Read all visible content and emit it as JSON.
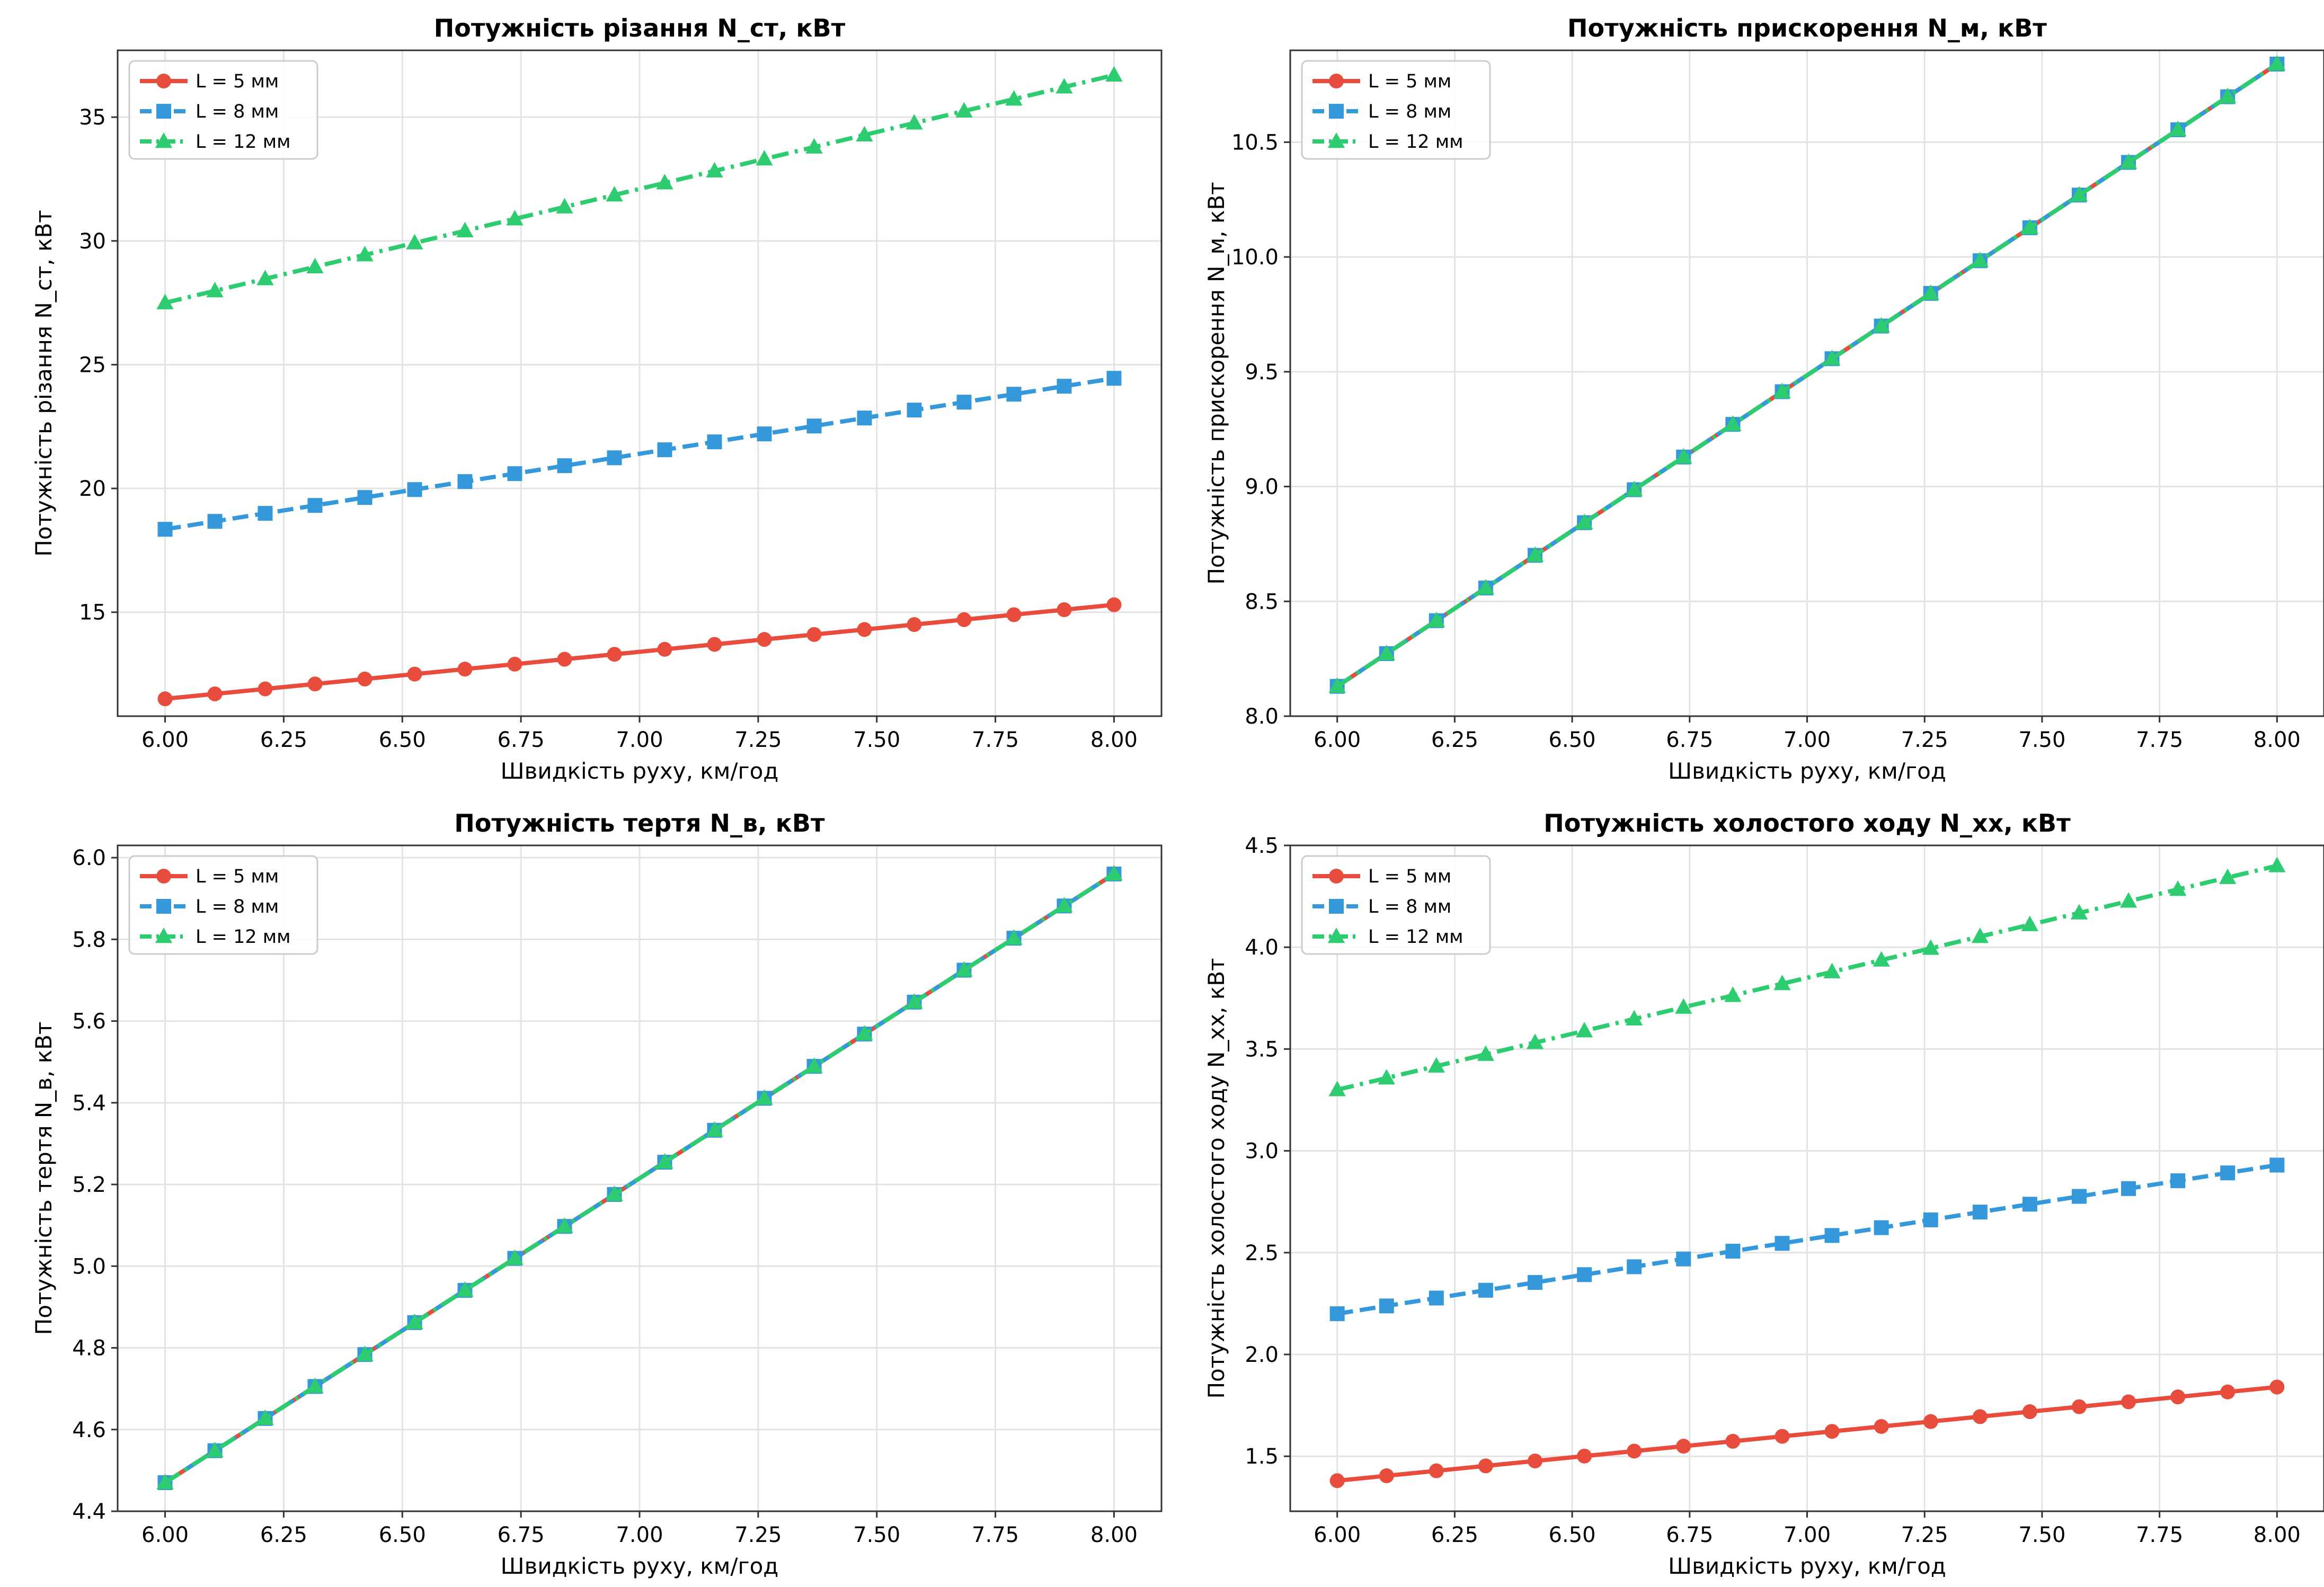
{
  "colors": {
    "s5": "#e74c3c",
    "s8": "#3498db",
    "s12": "#2ecc71",
    "grid": "#e3e3e3",
    "axis": "#333333"
  },
  "legend_labels": [
    "L = 5 мм",
    "L = 8 мм",
    "L = 12 мм"
  ],
  "chart_data": [
    {
      "type": "line",
      "title": "Потужність різання N_ст, кВт",
      "xlabel": "Швидкість руху, км/год",
      "ylabel": "Потужність різання N_ст, кВт",
      "xlim": [
        5.9,
        8.1
      ],
      "ylim": [
        10.8,
        37.7
      ],
      "xticks": [
        "6.00",
        "6.25",
        "6.50",
        "6.75",
        "7.00",
        "7.25",
        "7.50",
        "7.75",
        "8.00"
      ],
      "yticks": [
        "15",
        "20",
        "25",
        "30",
        "35"
      ],
      "grid": true,
      "legend": "top-left",
      "x": [
        6.0,
        6.105,
        6.211,
        6.316,
        6.421,
        6.526,
        6.632,
        6.737,
        6.842,
        6.947,
        7.053,
        7.158,
        7.263,
        7.368,
        7.474,
        7.579,
        7.684,
        7.789,
        7.895,
        8.0
      ],
      "series": [
        {
          "name": "L = 5 мм",
          "start": 11.5,
          "end": 15.3,
          "color": "#e74c3c",
          "dash": "",
          "marker": "circle"
        },
        {
          "name": "L = 8 мм",
          "start": 18.35,
          "end": 24.45,
          "color": "#3498db",
          "dash": "30 13",
          "marker": "square"
        },
        {
          "name": "L = 12 мм",
          "start": 27.5,
          "end": 36.7,
          "color": "#2ecc71",
          "dash": "32 12 6 12",
          "marker": "triangle"
        }
      ]
    },
    {
      "type": "line",
      "title": "Потужність прискорення N_м, кВт",
      "xlabel": "Швидкість руху, км/год",
      "ylabel": "Потужність прискорення N_м, кВт",
      "xlim": [
        5.9,
        8.1
      ],
      "ylim": [
        8.0,
        10.9
      ],
      "xticks": [
        "6.00",
        "6.25",
        "6.50",
        "6.75",
        "7.00",
        "7.25",
        "7.50",
        "7.75",
        "8.00"
      ],
      "yticks": [
        "8.0",
        "8.5",
        "9.0",
        "9.5",
        "10.0",
        "10.5"
      ],
      "grid": true,
      "legend": "top-left",
      "x": [
        6.0,
        6.105,
        6.211,
        6.316,
        6.421,
        6.526,
        6.632,
        6.737,
        6.842,
        6.947,
        7.053,
        7.158,
        7.263,
        7.368,
        7.474,
        7.579,
        7.684,
        7.789,
        7.895,
        8.0
      ],
      "series": [
        {
          "name": "L = 5 мм",
          "start": 8.13,
          "end": 10.84,
          "color": "#e74c3c",
          "dash": "",
          "marker": "circle"
        },
        {
          "name": "L = 8 мм",
          "start": 8.13,
          "end": 10.84,
          "color": "#3498db",
          "dash": "30 13",
          "marker": "square"
        },
        {
          "name": "L = 12 мм",
          "start": 8.13,
          "end": 10.84,
          "color": "#2ecc71",
          "dash": "32 12 6 12",
          "marker": "triangle"
        }
      ]
    },
    {
      "type": "line",
      "title": "Потужність тертя N_в, кВт",
      "xlabel": "Швидкість руху, км/год",
      "ylabel": "Потужність тертя N_в, кВт",
      "xlim": [
        5.9,
        8.1
      ],
      "ylim": [
        4.4,
        6.03
      ],
      "xticks": [
        "6.00",
        "6.25",
        "6.50",
        "6.75",
        "7.00",
        "7.25",
        "7.50",
        "7.75",
        "8.00"
      ],
      "yticks": [
        "4.4",
        "4.6",
        "4.8",
        "5.0",
        "5.2",
        "5.4",
        "5.6",
        "5.8",
        "6.0"
      ],
      "grid": true,
      "legend": "top-left",
      "x": [
        6.0,
        6.105,
        6.211,
        6.316,
        6.421,
        6.526,
        6.632,
        6.737,
        6.842,
        6.947,
        7.053,
        7.158,
        7.263,
        7.368,
        7.474,
        7.579,
        7.684,
        7.789,
        7.895,
        8.0
      ],
      "series": [
        {
          "name": "L = 5 мм",
          "start": 4.47,
          "end": 5.96,
          "color": "#e74c3c",
          "dash": "",
          "marker": "circle"
        },
        {
          "name": "L = 8 мм",
          "start": 4.47,
          "end": 5.96,
          "color": "#3498db",
          "dash": "30 13",
          "marker": "square"
        },
        {
          "name": "L = 12 мм",
          "start": 4.47,
          "end": 5.96,
          "color": "#2ecc71",
          "dash": "32 12 6 12",
          "marker": "triangle"
        }
      ]
    },
    {
      "type": "line",
      "title": "Потужність холостого ходу N_хх, кВт",
      "xlabel": "Швидкість руху, км/год",
      "ylabel": "Потужність холостого ходу N_хх, кВт",
      "xlim": [
        5.9,
        8.1
      ],
      "ylim": [
        1.23,
        4.5
      ],
      "xticks": [
        "6.00",
        "6.25",
        "6.50",
        "6.75",
        "7.00",
        "7.25",
        "7.50",
        "7.75",
        "8.00"
      ],
      "yticks": [
        "1.5",
        "2.0",
        "2.5",
        "3.0",
        "3.5",
        "4.0",
        "4.5"
      ],
      "grid": true,
      "legend": "top-left",
      "x": [
        6.0,
        6.105,
        6.211,
        6.316,
        6.421,
        6.526,
        6.632,
        6.737,
        6.842,
        6.947,
        7.053,
        7.158,
        7.263,
        7.368,
        7.474,
        7.579,
        7.684,
        7.789,
        7.895,
        8.0
      ],
      "series": [
        {
          "name": "L = 5 мм",
          "start": 1.38,
          "end": 1.84,
          "color": "#e74c3c",
          "dash": "",
          "marker": "circle"
        },
        {
          "name": "L = 8 мм",
          "start": 2.2,
          "end": 2.93,
          "color": "#3498db",
          "dash": "30 13",
          "marker": "square"
        },
        {
          "name": "L = 12 мм",
          "start": 3.3,
          "end": 4.4,
          "color": "#2ecc71",
          "dash": "32 12 6 12",
          "marker": "triangle"
        }
      ]
    }
  ]
}
